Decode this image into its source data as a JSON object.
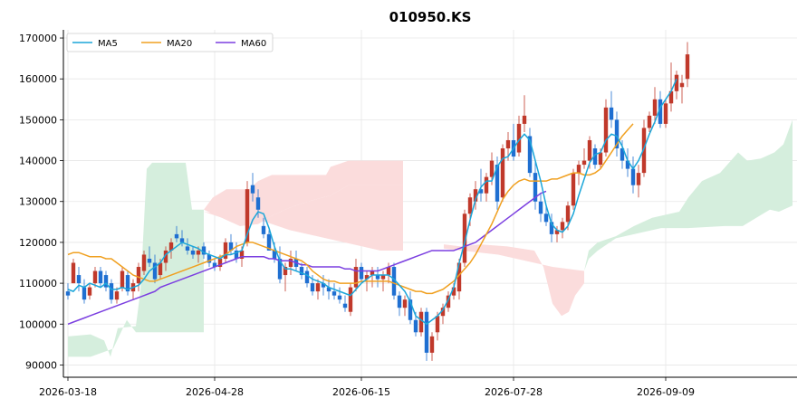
{
  "chart_data": {
    "type": "candlestick",
    "title": "010950.KS",
    "xlabel": "",
    "ylabel": "",
    "ylim": [
      87000,
      172000
    ],
    "grid": true,
    "legend_position": "top-left",
    "x_tick_labels": [
      "2026-03-18",
      "2026-04-28",
      "2026-06-15",
      "2026-07-28",
      "2026-09-09"
    ],
    "y_ticks": [
      90000,
      100000,
      110000,
      120000,
      130000,
      140000,
      150000,
      160000,
      170000
    ],
    "y_tick_labels": [
      "90000",
      "100000",
      "110000",
      "120000",
      "130000",
      "140000",
      "150000",
      "160000",
      "170000"
    ],
    "colors": {
      "up": "#c0392b",
      "down": "#1f6fd1",
      "ma5": "#1ba6d9",
      "ma20": "#f0a020",
      "ma60": "#7b3fe0",
      "cloud_bull": "#d5eedd",
      "cloud_bear": "#fbdcdc"
    },
    "legend": [
      {
        "label": "MA5",
        "color": "#1ba6d9"
      },
      {
        "label": "MA20",
        "color": "#f0a020"
      },
      {
        "label": "MA60",
        "color": "#7b3fe0"
      }
    ],
    "candles": [
      [
        108000,
        110000,
        106000,
        107000
      ],
      [
        110000,
        116000,
        110000,
        115000
      ],
      [
        112000,
        114000,
        108000,
        110000
      ],
      [
        109000,
        111000,
        105000,
        106000
      ],
      [
        107000,
        110000,
        106000,
        109000
      ],
      [
        110000,
        114000,
        109000,
        113000
      ],
      [
        113000,
        114000,
        109000,
        110000
      ],
      [
        112000,
        113000,
        108000,
        109000
      ],
      [
        110000,
        111000,
        105000,
        106000
      ],
      [
        106000,
        109000,
        105000,
        108000
      ],
      [
        109000,
        114000,
        108000,
        113000
      ],
      [
        112000,
        113000,
        107000,
        108000
      ],
      [
        108000,
        111000,
        106000,
        110000
      ],
      [
        110000,
        115000,
        108000,
        114000
      ],
      [
        113000,
        118000,
        112000,
        117000
      ],
      [
        116000,
        119000,
        114000,
        115000
      ],
      [
        115000,
        117000,
        110000,
        111000
      ],
      [
        112000,
        116000,
        111000,
        115000
      ],
      [
        115000,
        119000,
        113000,
        118000
      ],
      [
        118000,
        121000,
        116000,
        120000
      ],
      [
        122000,
        124000,
        120000,
        121000
      ],
      [
        121000,
        123000,
        119000,
        120000
      ],
      [
        119000,
        121000,
        117000,
        118000
      ],
      [
        118000,
        119000,
        116000,
        117000
      ],
      [
        117000,
        119000,
        115000,
        118000
      ],
      [
        119000,
        120000,
        116000,
        117000
      ],
      [
        117000,
        118000,
        114000,
        115000
      ],
      [
        115000,
        116000,
        113000,
        114000
      ],
      [
        114000,
        117000,
        113000,
        116000
      ],
      [
        116000,
        121000,
        115000,
        120000
      ],
      [
        120000,
        122000,
        117000,
        118000
      ],
      [
        118000,
        120000,
        115000,
        116000
      ],
      [
        116000,
        119000,
        114000,
        118000
      ],
      [
        120000,
        135000,
        119000,
        133000
      ],
      [
        134000,
        137000,
        130000,
        132000
      ],
      [
        131000,
        133000,
        126000,
        128000
      ],
      [
        124000,
        126000,
        121000,
        122000
      ],
      [
        122000,
        123000,
        118000,
        118000
      ],
      [
        118000,
        120000,
        115000,
        116000
      ],
      [
        116000,
        119000,
        110000,
        111000
      ],
      [
        112000,
        115000,
        108000,
        114000
      ],
      [
        114000,
        118000,
        112000,
        116000
      ],
      [
        116000,
        118000,
        113000,
        114000
      ],
      [
        114000,
        115000,
        111000,
        112000
      ],
      [
        113000,
        114000,
        109000,
        110000
      ],
      [
        110000,
        112000,
        107000,
        108000
      ],
      [
        108000,
        111000,
        106000,
        110000
      ],
      [
        110000,
        112000,
        107000,
        109000
      ],
      [
        109000,
        111000,
        106000,
        108000
      ],
      [
        108000,
        110000,
        106000,
        107000
      ],
      [
        107000,
        109000,
        105000,
        106000
      ],
      [
        105000,
        107000,
        103000,
        104000
      ],
      [
        103000,
        110000,
        102000,
        109000
      ],
      [
        109000,
        116000,
        108000,
        114000
      ],
      [
        114000,
        115000,
        110000,
        111000
      ],
      [
        111000,
        113000,
        108000,
        112000
      ],
      [
        112000,
        114000,
        109000,
        113000
      ],
      [
        112000,
        114000,
        109000,
        111000
      ],
      [
        111000,
        113000,
        108000,
        112000
      ],
      [
        112000,
        115000,
        110000,
        114000
      ],
      [
        114000,
        115000,
        106000,
        107000
      ],
      [
        107000,
        108000,
        102000,
        104000
      ],
      [
        104000,
        107000,
        102000,
        106000
      ],
      [
        106000,
        108000,
        100000,
        101000
      ],
      [
        101000,
        103000,
        97000,
        98000
      ],
      [
        98000,
        104000,
        97000,
        103000
      ],
      [
        103000,
        104000,
        91000,
        93000
      ],
      [
        93000,
        98000,
        91000,
        97000
      ],
      [
        98000,
        103000,
        96000,
        102000
      ],
      [
        102000,
        105000,
        100000,
        104000
      ],
      [
        104000,
        108000,
        103000,
        107000
      ],
      [
        107000,
        110000,
        106000,
        109000
      ],
      [
        108000,
        116000,
        106000,
        115000
      ],
      [
        115000,
        128000,
        114000,
        127000
      ],
      [
        127000,
        132000,
        124000,
        131000
      ],
      [
        130000,
        135000,
        128000,
        133000
      ],
      [
        133000,
        138000,
        130000,
        132000
      ],
      [
        132000,
        137000,
        130000,
        136000
      ],
      [
        136000,
        142000,
        134000,
        140000
      ],
      [
        139000,
        141000,
        128000,
        130000
      ],
      [
        131000,
        144000,
        130000,
        143000
      ],
      [
        143000,
        147000,
        140000,
        145000
      ],
      [
        145000,
        149000,
        140000,
        141000
      ],
      [
        142000,
        151000,
        141000,
        149000
      ],
      [
        149000,
        156000,
        147000,
        151000
      ],
      [
        146000,
        148000,
        136000,
        137000
      ],
      [
        137000,
        140000,
        128000,
        130000
      ],
      [
        130000,
        132000,
        125000,
        127000
      ],
      [
        127000,
        129000,
        124000,
        125000
      ],
      [
        125000,
        127000,
        120000,
        122000
      ],
      [
        122000,
        124000,
        120000,
        123000
      ],
      [
        123000,
        126000,
        121000,
        125000
      ],
      [
        125000,
        130000,
        123000,
        129000
      ],
      [
        129000,
        138000,
        128000,
        137000
      ],
      [
        137000,
        140000,
        134000,
        139000
      ],
      [
        139000,
        143000,
        138000,
        140000
      ],
      [
        140000,
        146000,
        138000,
        145000
      ],
      [
        143000,
        144000,
        138000,
        139000
      ],
      [
        139000,
        143000,
        138000,
        142000
      ],
      [
        142000,
        155000,
        141000,
        153000
      ],
      [
        153000,
        157000,
        148000,
        150000
      ],
      [
        150000,
        152000,
        141000,
        143000
      ],
      [
        143000,
        145000,
        138000,
        140000
      ],
      [
        140000,
        143000,
        136000,
        138000
      ],
      [
        138000,
        141000,
        132000,
        134000
      ],
      [
        134000,
        139000,
        131000,
        137000
      ],
      [
        137000,
        150000,
        136000,
        148000
      ],
      [
        148000,
        152000,
        147000,
        151000
      ],
      [
        151000,
        158000,
        149000,
        155000
      ],
      [
        155000,
        157000,
        148000,
        149000
      ],
      [
        149000,
        155000,
        148000,
        154000
      ],
      [
        154000,
        164000,
        152000,
        157000
      ],
      [
        157000,
        162000,
        155000,
        161000
      ],
      [
        158000,
        161000,
        154000,
        159000
      ],
      [
        160000,
        169000,
        158000,
        166000
      ]
    ],
    "ma5": [
      108500,
      108000,
      109500,
      109000,
      110000,
      109500,
      109000,
      110000,
      108500,
      108500,
      109000,
      108500,
      109000,
      109500,
      111000,
      113000,
      114000,
      115000,
      117000,
      118000,
      119000,
      120000,
      119500,
      119000,
      118500,
      117500,
      117000,
      116500,
      116000,
      117000,
      117000,
      117500,
      118000,
      122000,
      125500,
      127500,
      127000,
      123500,
      119000,
      115500,
      113500,
      113500,
      113000,
      112500,
      112000,
      111000,
      110500,
      110000,
      109000,
      108500,
      108000,
      107500,
      107000,
      108500,
      110000,
      111000,
      112000,
      112000,
      112000,
      112000,
      111000,
      109500,
      108000,
      105500,
      102000,
      101000,
      100000,
      101000,
      102000,
      103500,
      106000,
      109000,
      115000,
      120000,
      125500,
      130500,
      133500,
      135000,
      135000,
      138500,
      140500,
      141000,
      143000,
      145000,
      146500,
      145000,
      140000,
      135000,
      129000,
      124500,
      123000,
      122500,
      124000,
      127000,
      131500,
      135500,
      139500,
      141500,
      142000,
      145000,
      146500,
      146000,
      143500,
      140000,
      138000,
      140000,
      143000,
      146500,
      149500,
      153000,
      155000,
      157000,
      160000
    ],
    "ma20": [
      117000,
      117500,
      117500,
      117000,
      116500,
      116500,
      116500,
      116000,
      116000,
      115000,
      114000,
      113000,
      112000,
      111500,
      111000,
      110500,
      110500,
      111000,
      111500,
      112000,
      112500,
      113000,
      113500,
      114000,
      114500,
      115000,
      115500,
      116000,
      116500,
      117000,
      118000,
      119000,
      119500,
      120000,
      120000,
      119500,
      119000,
      118500,
      118000,
      117500,
      117000,
      116500,
      116000,
      115500,
      114500,
      113000,
      112000,
      111000,
      110500,
      110500,
      110000,
      110000,
      110000,
      110000,
      110500,
      110500,
      110500,
      110500,
      110500,
      110500,
      110000,
      109500,
      109000,
      108500,
      108000,
      108000,
      107500,
      107500,
      108000,
      108500,
      109500,
      110500,
      112000,
      113500,
      115000,
      117000,
      119500,
      122000,
      124500,
      127500,
      130500,
      132500,
      134000,
      135000,
      135500,
      135000,
      135000,
      135000,
      135000,
      135500,
      135500,
      136000,
      136500,
      137000,
      137000,
      136500,
      136500,
      137000,
      138000,
      140000,
      142000,
      144000,
      146000,
      147500,
      149000
    ],
    "ma60": [
      100000,
      100500,
      101000,
      101500,
      102000,
      102500,
      103000,
      103500,
      104000,
      104500,
      105000,
      105500,
      106000,
      106500,
      107000,
      107500,
      108000,
      109000,
      109500,
      110000,
      110500,
      111000,
      111500,
      112000,
      112500,
      113000,
      113500,
      114000,
      114500,
      115000,
      115500,
      116000,
      116500,
      116500,
      116500,
      116500,
      116500,
      116000,
      116000,
      115500,
      115500,
      115500,
      115000,
      114500,
      114500,
      114000,
      114000,
      114000,
      114000,
      114000,
      114000,
      113500,
      113500,
      113000,
      113000,
      113000,
      113000,
      113000,
      113500,
      114000,
      114500,
      115000,
      115500,
      116000,
      116500,
      117000,
      117500,
      118000,
      118000,
      118000,
      118000,
      118000,
      118500,
      119000,
      119500,
      120000,
      121000,
      122000,
      123000,
      124000,
      125000,
      126000,
      127000,
      128000,
      129000,
      130000,
      131000,
      132000,
      132500
    ]
  }
}
